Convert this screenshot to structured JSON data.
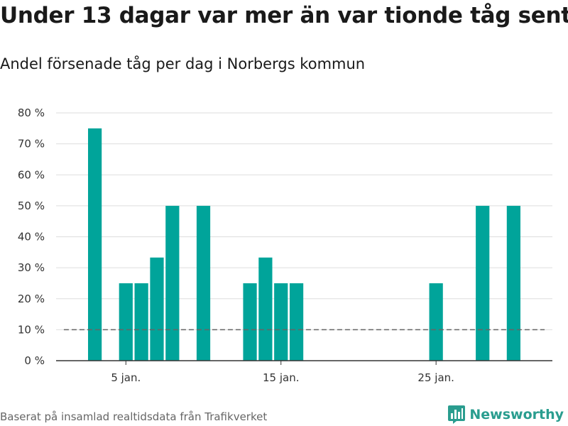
{
  "title": "Under 13 dagar var mer än var tionde tåg sent",
  "subtitle": "Andel försenade tåg per dag i Norbergs kommun",
  "source": "Baserat på insamlad realtidsdata från Trafikverket",
  "brand": {
    "name": "Newsworthy",
    "icon": "newsworthy-logo-icon"
  },
  "colors": {
    "bar": "#00a49a",
    "grid": "#dddddd",
    "axis": "#333333",
    "reference_line": "#666666"
  },
  "chart_data": {
    "type": "bar",
    "title": "Under 13 dagar var mer än var tionde tåg sent",
    "subtitle": "Andel försenade tåg per dag i Norbergs kommun",
    "xlabel": "",
    "ylabel": "",
    "x_unit": "day of January",
    "x": [
      2,
      3,
      4,
      5,
      6,
      7,
      8,
      9,
      10,
      11,
      12,
      13,
      14,
      15,
      16,
      17,
      18,
      19,
      20,
      21,
      22,
      23,
      24,
      25,
      26,
      27,
      28,
      29,
      30,
      31
    ],
    "values": [
      0,
      75,
      0,
      25,
      25,
      33.3,
      50,
      0,
      50,
      0,
      0,
      25,
      33.3,
      25,
      25,
      0,
      0,
      0,
      0,
      0,
      0,
      0,
      0,
      25,
      0,
      0,
      50,
      0,
      50,
      0
    ],
    "x_ticks": [
      {
        "x": 5,
        "label": "5 jan."
      },
      {
        "x": 15,
        "label": "15 jan."
      },
      {
        "x": 25,
        "label": "25 jan."
      }
    ],
    "y_ticks": [
      {
        "value": 0,
        "label": "0 %"
      },
      {
        "value": 10,
        "label": "10 %"
      },
      {
        "value": 20,
        "label": "20 %"
      },
      {
        "value": 30,
        "label": "30 %"
      },
      {
        "value": 40,
        "label": "40 %"
      },
      {
        "value": 50,
        "label": "50 %"
      },
      {
        "value": 60,
        "label": "60 %"
      },
      {
        "value": 70,
        "label": "70 %"
      },
      {
        "value": 80,
        "label": "80 %"
      }
    ],
    "xlim": [
      0.5,
      32.5
    ],
    "ylim": [
      0,
      80
    ],
    "reference_line": {
      "value": 10,
      "style": "dashed",
      "x_range": [
        1,
        32
      ]
    },
    "grid": true,
    "legend": "none"
  }
}
